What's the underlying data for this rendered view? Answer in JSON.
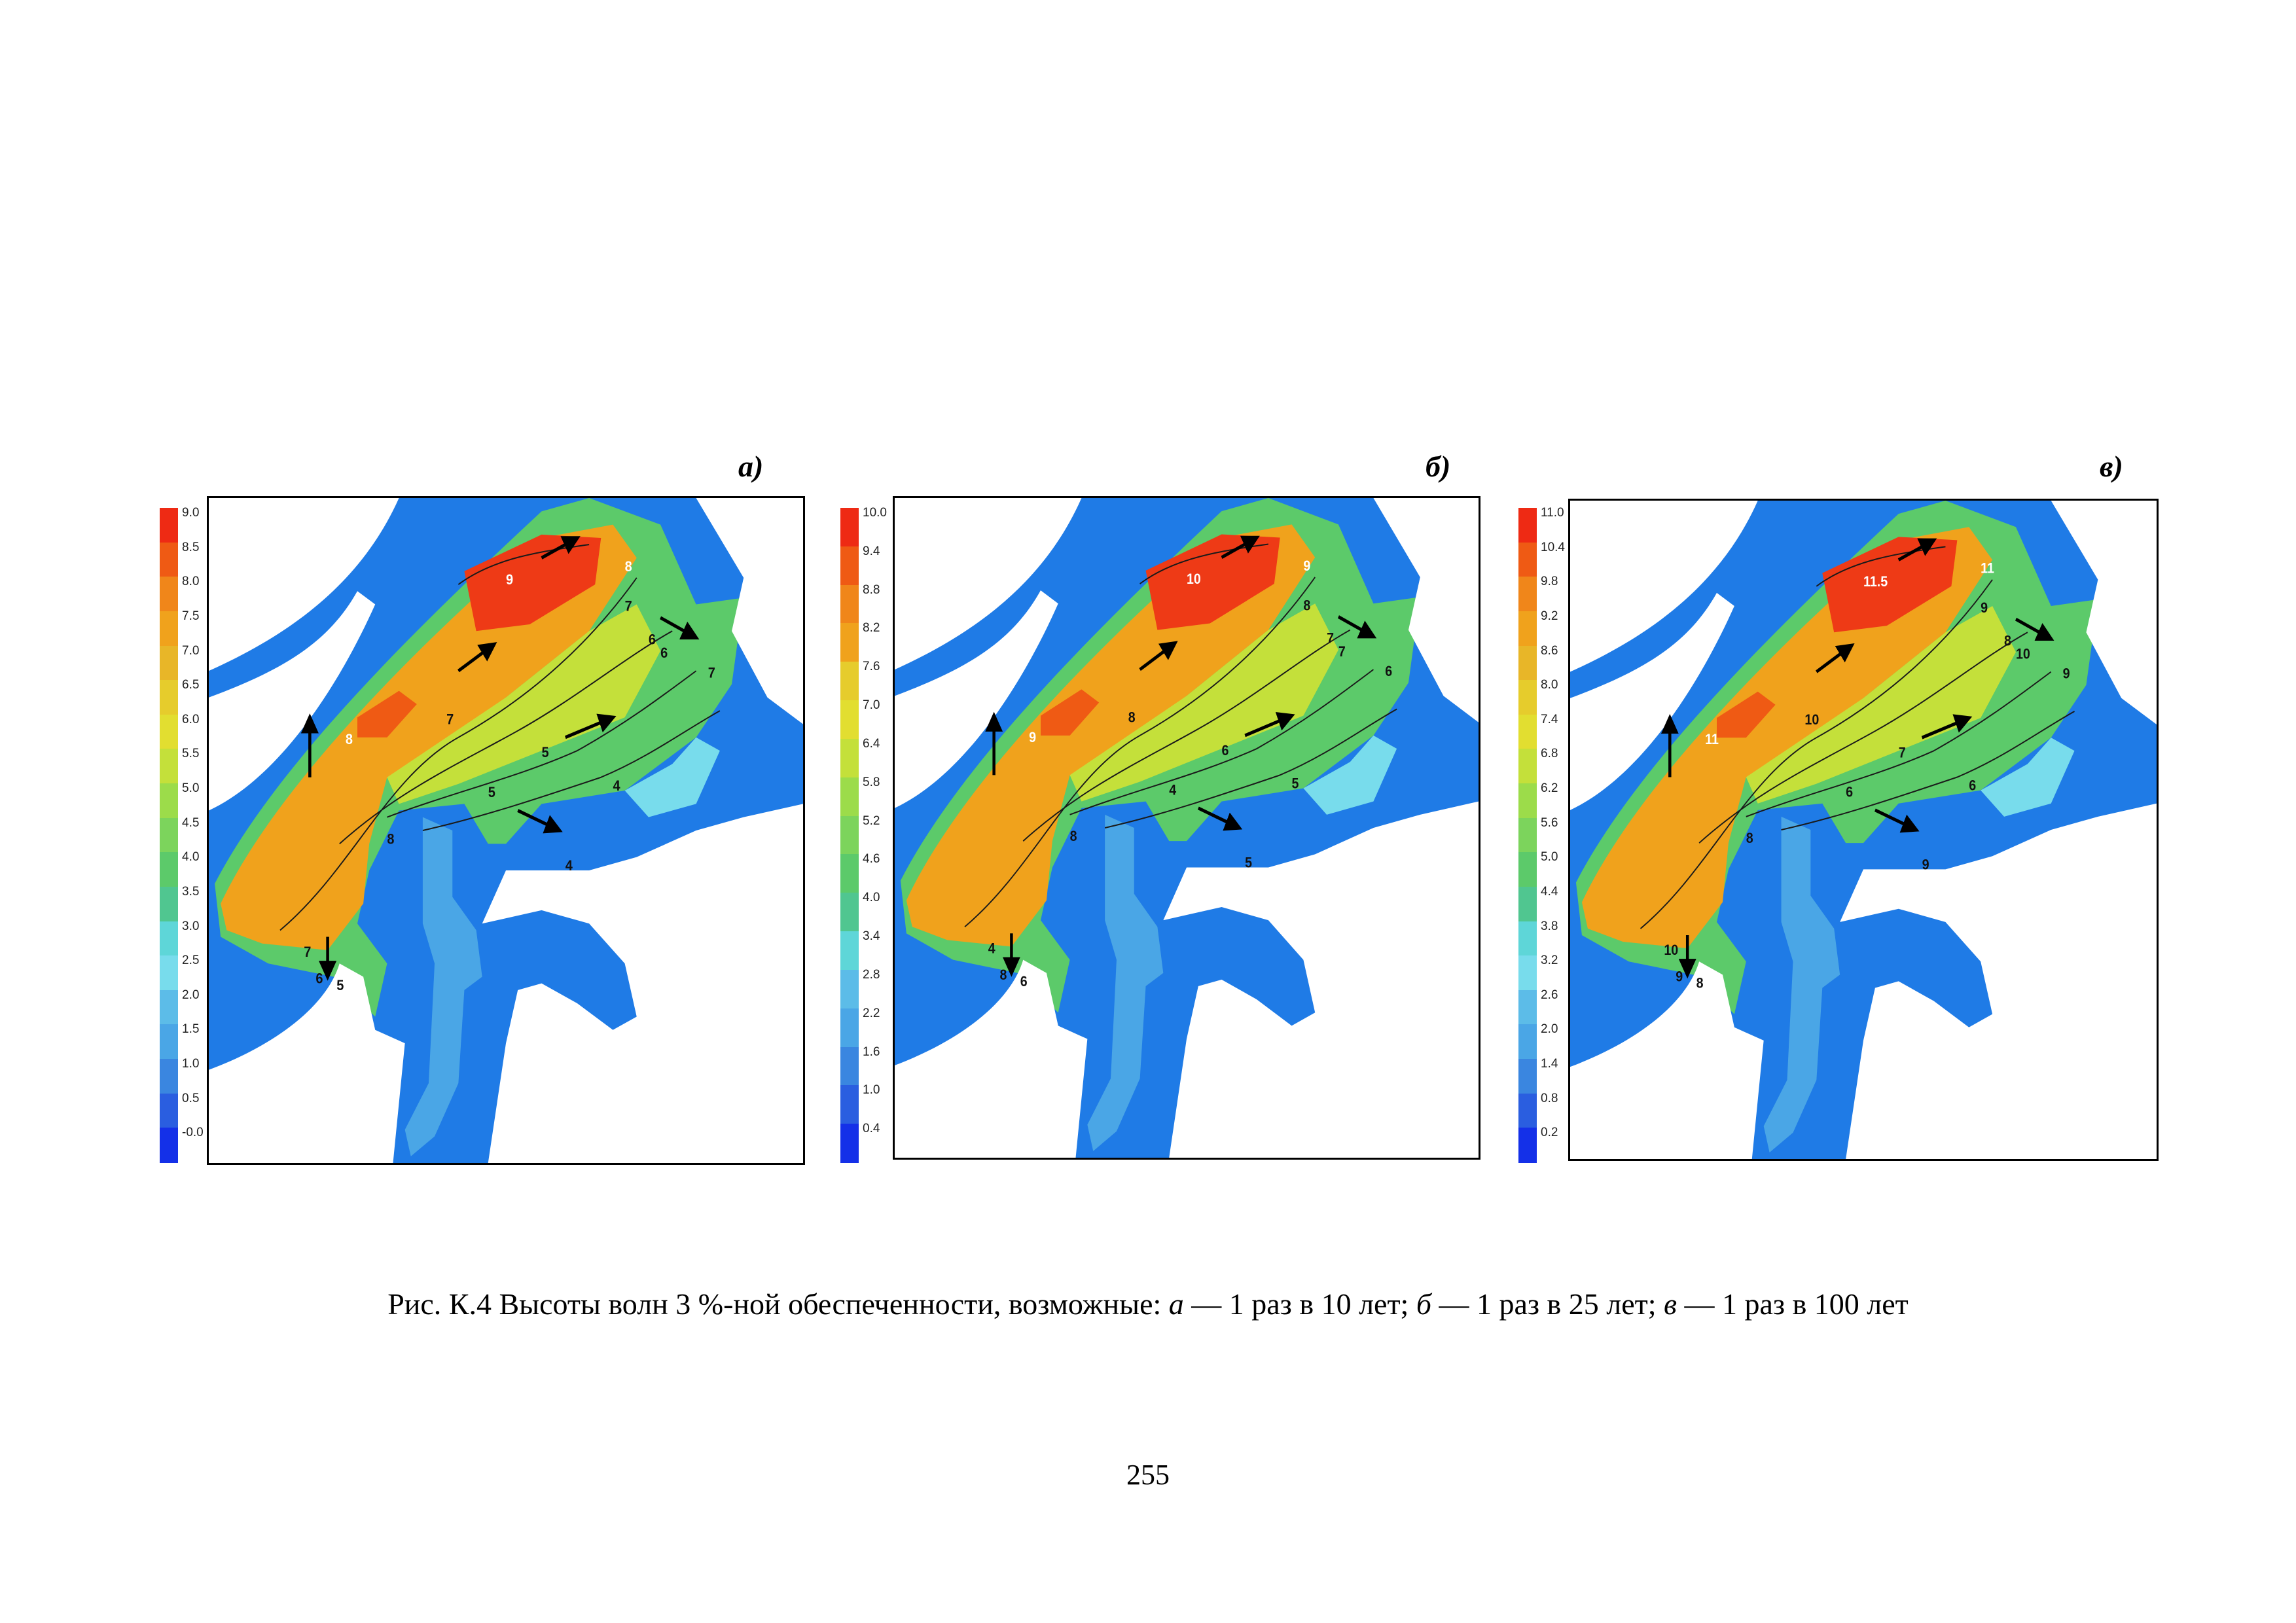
{
  "colors": {
    "sea_deep": "#1f7be6",
    "land": "#ffffff",
    "low": "#4aa6e6",
    "mid": "#5fd06a",
    "high": "#f0a21c",
    "peak": "#ee3a16"
  },
  "panels": [
    {
      "id": "a",
      "label": "а)",
      "legend": [
        "9.0",
        "8.5",
        "8.0",
        "7.5",
        "7.0",
        "6.5",
        "6.0",
        "5.5",
        "5.0",
        "4.5",
        "4.0",
        "3.5",
        "3.0",
        "2.5",
        "2.0",
        "1.5",
        "1.0",
        "0.5",
        "-0.0"
      ],
      "contour_labels": [
        "9",
        "8",
        "8",
        "7",
        "7",
        "6",
        "5",
        "4",
        "7",
        "6",
        "5",
        "4",
        "5",
        "6",
        "7",
        "8"
      ]
    },
    {
      "id": "b",
      "label": "б)",
      "legend": [
        "10.0",
        "9.4",
        "8.8",
        "8.2",
        "7.6",
        "7.0",
        "6.4",
        "5.8",
        "5.2",
        "4.6",
        "4.0",
        "3.4",
        "2.8",
        "2.2",
        "1.6",
        "1.0",
        "0.4"
      ],
      "contour_labels": [
        "10",
        "9",
        "9",
        "8",
        "8",
        "7",
        "6",
        "5",
        "4",
        "8",
        "6",
        "5",
        "4",
        "7",
        "6",
        "8"
      ]
    },
    {
      "id": "c",
      "label": "в)",
      "legend": [
        "11.0",
        "10.4",
        "9.8",
        "9.2",
        "8.6",
        "8.0",
        "7.4",
        "6.8",
        "6.2",
        "5.6",
        "5.0",
        "4.4",
        "3.8",
        "3.2",
        "2.6",
        "2.0",
        "1.4",
        "0.8",
        "0.2"
      ],
      "contour_labels": [
        "11.5",
        "11",
        "11",
        "10",
        "9",
        "8",
        "7",
        "6",
        "10",
        "9",
        "8",
        "9",
        "6",
        "10",
        "9",
        "8"
      ]
    }
  ],
  "caption": {
    "prefix": "Рис. К.4 Высоты волн 3 %-ной обеспеченности, возможные: ",
    "a_letter": "а",
    "a_text": " — 1 раз в 10 лет; ",
    "b_letter": "б",
    "b_text": " — 1 раз в 25 лет; ",
    "c_letter": "в",
    "c_text": " — 1 раз в 100 лет"
  },
  "page_number": "255"
}
